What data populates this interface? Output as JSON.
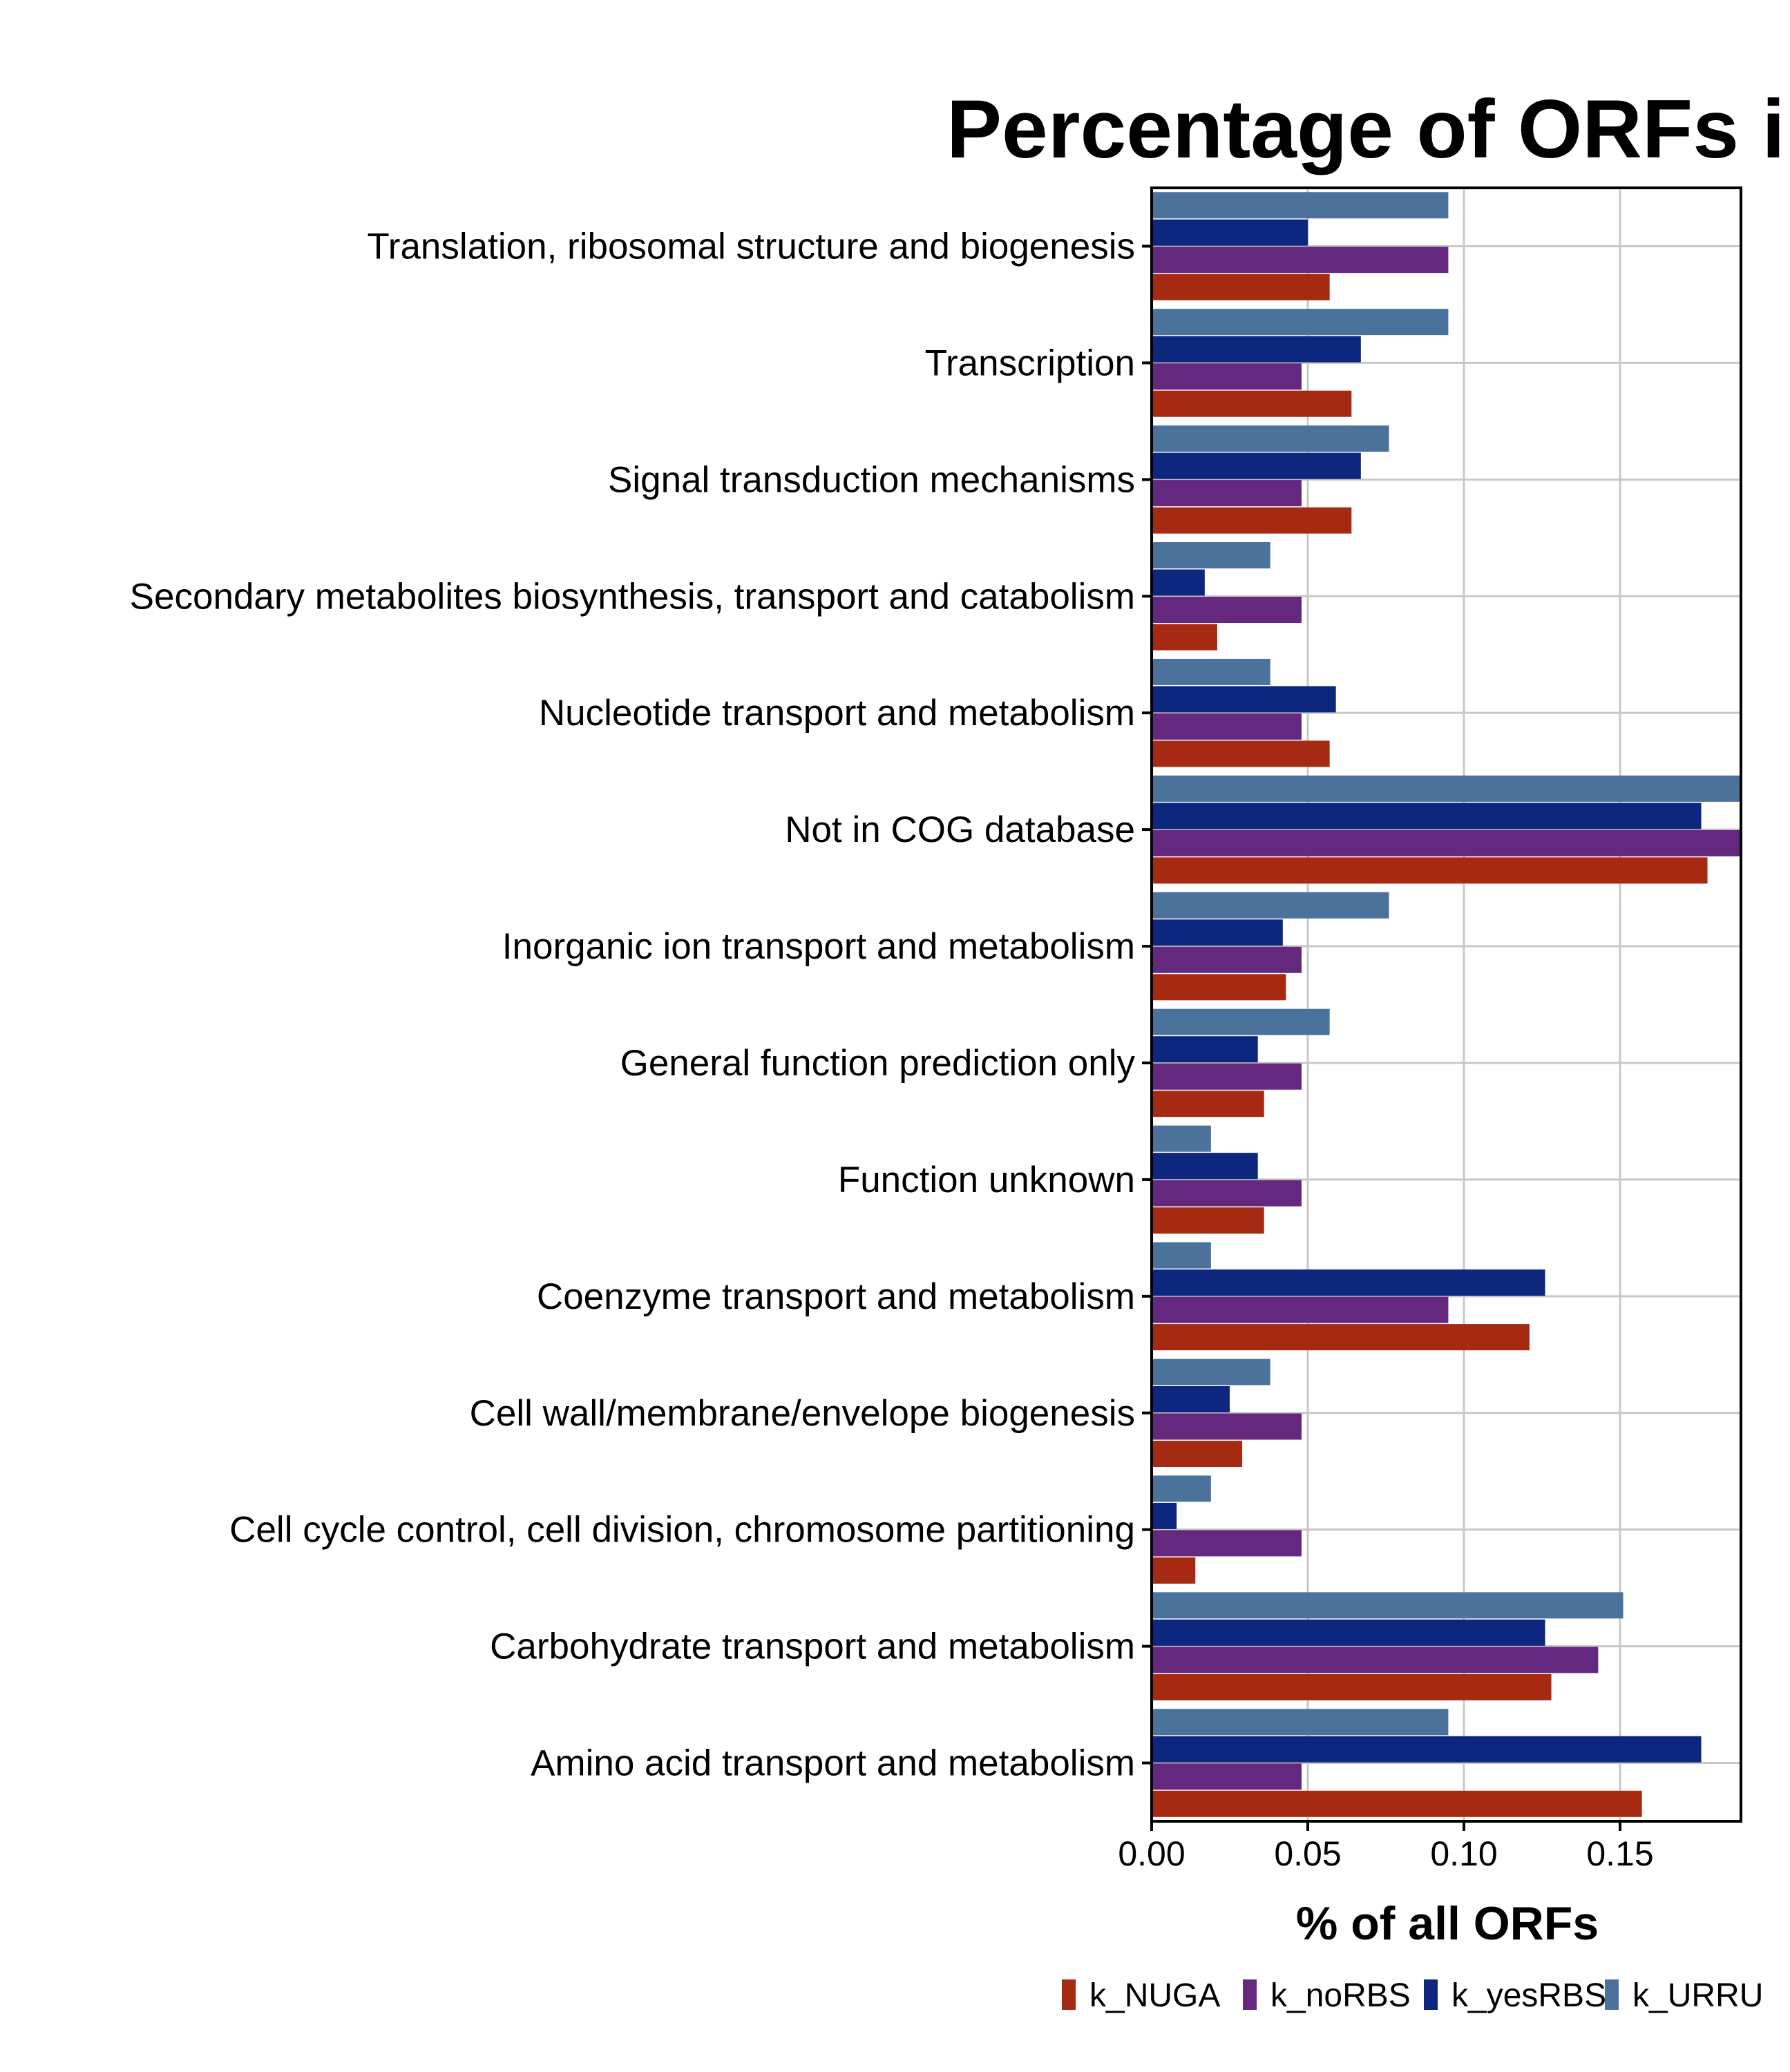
{
  "chart_data": {
    "type": "bar",
    "orientation": "horizontal",
    "title": "Percentage of ORFs in",
    "xlabel": "% of all ORFs",
    "ylabel": "",
    "xlim": [
      0,
      0.19
    ],
    "x_ticks": [
      "0.00",
      "0.05",
      "0.10",
      "0.15"
    ],
    "x_tick_values": [
      0,
      0.05,
      0.1,
      0.15
    ],
    "grid": true,
    "legend_position": "bottom",
    "categories": [
      "Translation, ribosomal structure and biogenesis",
      "Transcription",
      "Signal transduction mechanisms",
      "Secondary metabolites biosynthesis, transport and catabolism",
      "Nucleotide transport and metabolism",
      "Not in COG database",
      "Inorganic ion transport and metabolism",
      "General function prediction only",
      "Function unknown",
      "Coenzyme transport and metabolism",
      "Cell wall/membrane/envelope biogenesis",
      "Cell cycle control, cell division, chromosome partitioning",
      "Carbohydrate transport and metabolism",
      "Amino acid transport and metabolism"
    ],
    "series": [
      {
        "name": "k_NUGA",
        "color": "#A62A11",
        "values": [
          0.057,
          0.064,
          0.064,
          0.021,
          0.057,
          0.178,
          0.043,
          0.036,
          0.036,
          0.121,
          0.029,
          0.014,
          0.128,
          0.157
        ]
      },
      {
        "name": "k_noRBS",
        "color": "#65287F",
        "values": [
          0.095,
          0.048,
          0.048,
          0.048,
          0.048,
          0.19,
          0.048,
          0.048,
          0.048,
          0.095,
          0.048,
          0.048,
          0.143,
          0.048
        ]
      },
      {
        "name": "k_yesRBS",
        "color": "#0D267E",
        "values": [
          0.05,
          0.067,
          0.067,
          0.017,
          0.059,
          0.176,
          0.042,
          0.034,
          0.034,
          0.126,
          0.025,
          0.008,
          0.126,
          0.176
        ]
      },
      {
        "name": "k_URRU",
        "color": "#4A729B",
        "values": [
          0.095,
          0.095,
          0.076,
          0.038,
          0.038,
          0.189,
          0.076,
          0.057,
          0.019,
          0.019,
          0.038,
          0.019,
          0.151,
          0.095
        ]
      }
    ]
  }
}
